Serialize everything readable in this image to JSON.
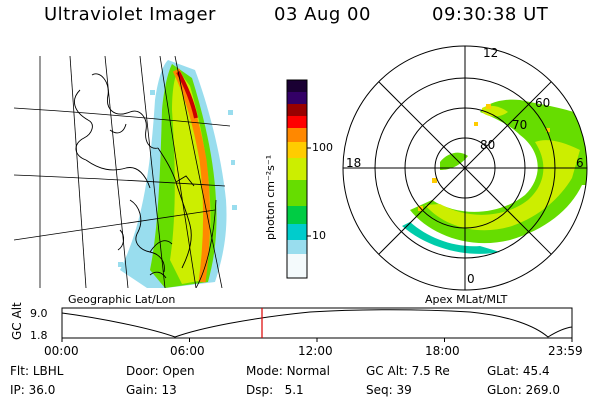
{
  "header": {
    "instrument": "Ultraviolet Imager",
    "date": "03 Aug 00",
    "time": "09:30:38 UT"
  },
  "colorbar": {
    "units_label": "photon cm⁻²s⁻¹",
    "ticks": [
      "100",
      "10"
    ],
    "scale": "log",
    "colors": [
      "#1a0033",
      "#330066",
      "#990000",
      "#ff0000",
      "#ff8800",
      "#ffcc00",
      "#ccee00",
      "#66dd00",
      "#00cc44",
      "#00cccc",
      "#99ddee",
      "#ffffff"
    ]
  },
  "geo_panel": {
    "label": "Geographic Lat/Lon"
  },
  "polar_panel": {
    "label": "Apex MLat/MLT",
    "mlt_labels": {
      "top": "12",
      "left": "18",
      "right": "6",
      "bottom": "0"
    },
    "lat_labels": [
      "80",
      "70",
      "60"
    ]
  },
  "timeline": {
    "axis_label": "GC Alt",
    "y_ticks": [
      "9.0",
      "1.8"
    ],
    "x_ticks": [
      "00:00",
      "06:00",
      "12:00",
      "18:00",
      "23:59"
    ],
    "marker_time": "09:30:38",
    "marker_color": "#dd0000"
  },
  "info": {
    "row1": [
      {
        "label": "Flt:",
        "value": "LBHL"
      },
      {
        "label": "Door:",
        "value": "Open"
      },
      {
        "label": "Mode:",
        "value": "Normal"
      },
      {
        "label": "GC Alt:",
        "value": "7.5 Re"
      },
      {
        "label": "GLat:",
        "value": "45.4"
      }
    ],
    "row2": [
      {
        "label": "IP:",
        "value": "36.0"
      },
      {
        "label": "Gain:",
        "value": "13"
      },
      {
        "label": "Dsp:",
        "value": "5.1"
      },
      {
        "label": "Seq:",
        "value": "39"
      },
      {
        "label": "GLon:",
        "value": "269.0"
      }
    ]
  }
}
